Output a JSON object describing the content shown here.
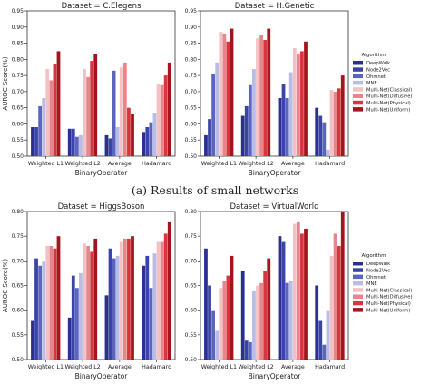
{
  "caption": "(a) Results of small networks",
  "chart_data": [
    {
      "type": "bar",
      "title": "Dataset = C.Elegens",
      "xlabel": "BinaryOperator",
      "ylabel": "AUROC Score(%)",
      "ylim": [
        0.5,
        0.95
      ],
      "yticks": [
        0.5,
        0.55,
        0.6,
        0.65,
        0.7,
        0.75,
        0.8,
        0.85,
        0.9,
        0.95
      ],
      "categories": [
        "Weighted L1",
        "Weighted L2",
        "Average",
        "Hadamard"
      ],
      "series": [
        {
          "name": "DeepWalk",
          "values": [
            0.59,
            0.585,
            0.565,
            0.575
          ]
        },
        {
          "name": "Node2Vec",
          "values": [
            0.59,
            0.585,
            0.555,
            0.59
          ]
        },
        {
          "name": "Ohmnet",
          "values": [
            0.655,
            0.56,
            0.765,
            0.605
          ]
        },
        {
          "name": "MNE",
          "values": [
            0.68,
            0.565,
            0.59,
            0.635
          ]
        },
        {
          "name": "Multi-Net(Classical)",
          "values": [
            0.77,
            0.77,
            0.775,
            0.725
          ]
        },
        {
          "name": "Multi-Net(Diffusive)",
          "values": [
            0.735,
            0.745,
            0.79,
            0.72
          ]
        },
        {
          "name": "Multi-Net(Physical)",
          "values": [
            0.785,
            0.795,
            0.65,
            0.75
          ]
        },
        {
          "name": "Multi-Net(Uniform)",
          "values": [
            0.825,
            0.815,
            0.63,
            0.79
          ]
        }
      ]
    },
    {
      "type": "bar",
      "title": "Dataset = H.Genetic",
      "xlabel": "BinaryOperator",
      "ylabel": "",
      "ylim": [
        0.5,
        0.95
      ],
      "yticks": [
        0.5,
        0.55,
        0.6,
        0.65,
        0.7,
        0.75,
        0.8,
        0.85,
        0.9,
        0.95
      ],
      "categories": [
        "Weighted L1",
        "Weighted L2",
        "Average",
        "Hadamard"
      ],
      "series": [
        {
          "name": "DeepWalk",
          "values": [
            0.565,
            0.625,
            0.68,
            0.65
          ]
        },
        {
          "name": "Node2Vec",
          "values": [
            0.615,
            0.655,
            0.725,
            0.625
          ]
        },
        {
          "name": "Ohmnet",
          "values": [
            0.755,
            0.72,
            0.68,
            0.605
          ]
        },
        {
          "name": "MNE",
          "values": [
            0.79,
            0.77,
            0.76,
            0.52
          ]
        },
        {
          "name": "Multi-Net(Classical)",
          "values": [
            0.885,
            0.865,
            0.835,
            0.705
          ]
        },
        {
          "name": "Multi-Net(Diffusive)",
          "values": [
            0.88,
            0.875,
            0.815,
            0.7
          ]
        },
        {
          "name": "Multi-Net(Physical)",
          "values": [
            0.855,
            0.86,
            0.825,
            0.71
          ]
        },
        {
          "name": "Multi-Net(Uniform)",
          "values": [
            0.895,
            0.895,
            0.855,
            0.75
          ]
        }
      ]
    },
    {
      "type": "bar",
      "title": "Dataset = HiggsBoson",
      "xlabel": "BinaryOperator",
      "ylabel": "AUROC Score(%)",
      "ylim": [
        0.5,
        0.8
      ],
      "yticks": [
        0.5,
        0.55,
        0.6,
        0.65,
        0.7,
        0.75,
        0.8
      ],
      "categories": [
        "Weighted L1",
        "Weighted L2",
        "Average",
        "Hadamard"
      ],
      "series": [
        {
          "name": "DeepWalk",
          "values": [
            0.58,
            0.585,
            0.63,
            0.69
          ]
        },
        {
          "name": "Node2Vec",
          "values": [
            0.705,
            0.67,
            0.725,
            0.71
          ]
        },
        {
          "name": "Ohmnet",
          "values": [
            0.69,
            0.645,
            0.705,
            0.645
          ]
        },
        {
          "name": "MNE",
          "values": [
            0.7,
            0.675,
            0.71,
            0.715
          ]
        },
        {
          "name": "Multi-Net(Classical)",
          "values": [
            0.73,
            0.735,
            0.74,
            0.74
          ]
        },
        {
          "name": "Multi-Net(Diffusive)",
          "values": [
            0.73,
            0.73,
            0.745,
            0.74
          ]
        },
        {
          "name": "Multi-Net(Physical)",
          "values": [
            0.725,
            0.72,
            0.745,
            0.755
          ]
        },
        {
          "name": "Multi-Net(Uniform)",
          "values": [
            0.75,
            0.745,
            0.75,
            0.78
          ]
        }
      ]
    },
    {
      "type": "bar",
      "title": "Dataset = VirtualWorld",
      "xlabel": "BinaryOperator",
      "ylabel": "",
      "ylim": [
        0.5,
        0.8
      ],
      "yticks": [
        0.5,
        0.55,
        0.6,
        0.65,
        0.7,
        0.75,
        0.8
      ],
      "categories": [
        "Weighted L1",
        "Weighted L2",
        "Average",
        "Hadamard"
      ],
      "series": [
        {
          "name": "DeepWalk",
          "values": [
            0.725,
            0.68,
            0.75,
            0.65
          ]
        },
        {
          "name": "Node2Vec",
          "values": [
            0.65,
            0.54,
            0.74,
            0.58
          ]
        },
        {
          "name": "Ohmnet",
          "values": [
            0.6,
            0.535,
            0.655,
            0.53
          ]
        },
        {
          "name": "MNE",
          "values": [
            0.56,
            0.64,
            0.66,
            0.6
          ]
        },
        {
          "name": "Multi-Net(Classical)",
          "values": [
            0.645,
            0.65,
            0.775,
            0.71
          ]
        },
        {
          "name": "Multi-Net(Diffusive)",
          "values": [
            0.66,
            0.655,
            0.78,
            0.755
          ]
        },
        {
          "name": "Multi-Net(Physical)",
          "values": [
            0.67,
            0.68,
            0.755,
            0.73
          ]
        },
        {
          "name": "Multi-Net(Uniform)",
          "values": [
            0.71,
            0.705,
            0.765,
            0.8
          ]
        }
      ]
    }
  ],
  "legend": {
    "title": "Algorithm",
    "placement": "right",
    "items": [
      "DeepWalk",
      "Node2Vec",
      "Ohmnet",
      "MNE",
      "Multi-Net(Classical)",
      "Multi-Net(Diffusive)",
      "Multi-Net(Physical)",
      "Multi-Net(Uniform)"
    ]
  },
  "colors": [
    "#2b2f8f",
    "#3a43a8",
    "#5b65c0",
    "#b7bde6",
    "#f3c0c3",
    "#e8858b",
    "#d6363d",
    "#a5141c"
  ]
}
